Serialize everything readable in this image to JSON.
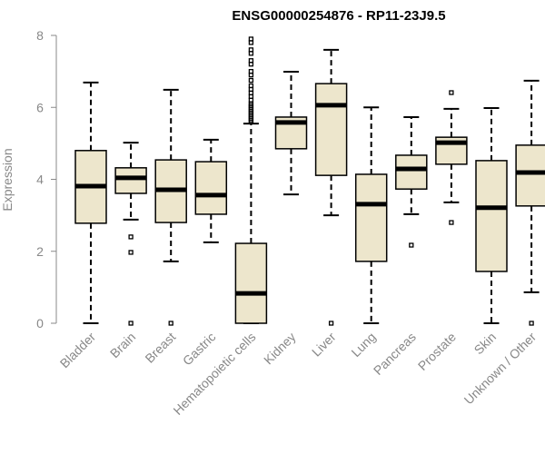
{
  "chart_data": {
    "type": "box",
    "title": "ENSG00000254876 - RP11-23J9.5",
    "xlabel": "",
    "ylabel": "Expression",
    "ylim": [
      0,
      8
    ],
    "yticks": [
      0,
      2,
      4,
      6,
      8
    ],
    "grid": false,
    "box_fill": "#ede6cc",
    "box_stroke": "#000000",
    "axis_color": "#888888",
    "categories": [
      "Bladder",
      "Brain",
      "Breast",
      "Gastric",
      "Hematopoietic cells",
      "Kidney",
      "Liver",
      "Lung",
      "Pancreas",
      "Prostate",
      "Skin",
      "Unknown / Other"
    ],
    "boxes": [
      {
        "name": "Bladder",
        "whisker_low": 0,
        "q1": 2.78,
        "median": 3.81,
        "q3": 4.8,
        "whisker_high": 6.69,
        "outliers": []
      },
      {
        "name": "Brain",
        "whisker_low": 2.88,
        "q1": 3.61,
        "median": 4.04,
        "q3": 4.32,
        "whisker_high": 5.02,
        "outliers": [
          2.4,
          1.97,
          0
        ]
      },
      {
        "name": "Breast",
        "whisker_low": 1.72,
        "q1": 2.8,
        "median": 3.71,
        "q3": 4.54,
        "whisker_high": 6.49,
        "outliers": [
          0
        ]
      },
      {
        "name": "Gastric",
        "whisker_low": 2.25,
        "q1": 3.03,
        "median": 3.56,
        "q3": 4.49,
        "whisker_high": 5.1,
        "outliers": []
      },
      {
        "name": "Hematopoietic cells",
        "whisker_low": 0,
        "q1": 0,
        "median": 0.83,
        "q3": 2.22,
        "whisker_high": 5.55,
        "outliers": [
          5.6,
          5.65,
          5.7,
          5.75,
          5.8,
          5.85,
          5.9,
          5.95,
          6.0,
          6.05,
          6.1,
          6.2,
          6.3,
          6.4,
          6.5,
          6.6,
          6.75,
          6.9,
          7.0,
          7.2,
          7.3,
          7.5,
          7.6,
          7.8,
          7.9
        ]
      },
      {
        "name": "Kidney",
        "whisker_low": 3.58,
        "q1": 4.85,
        "median": 5.58,
        "q3": 5.73,
        "whisker_high": 6.99,
        "outliers": []
      },
      {
        "name": "Liver",
        "whisker_low": 3.0,
        "q1": 4.11,
        "median": 6.06,
        "q3": 6.66,
        "whisker_high": 7.6,
        "outliers": [
          0
        ]
      },
      {
        "name": "Lung",
        "whisker_low": 0,
        "q1": 1.72,
        "median": 3.31,
        "q3": 4.14,
        "whisker_high": 6.0,
        "outliers": []
      },
      {
        "name": "Pancreas",
        "whisker_low": 3.03,
        "q1": 3.73,
        "median": 4.29,
        "q3": 4.67,
        "whisker_high": 5.73,
        "outliers": [
          2.17
        ]
      },
      {
        "name": "Prostate",
        "whisker_low": 3.36,
        "q1": 4.42,
        "median": 5.02,
        "q3": 5.17,
        "whisker_high": 5.96,
        "outliers": [
          6.41,
          2.8
        ]
      },
      {
        "name": "Skin",
        "whisker_low": 0,
        "q1": 1.44,
        "median": 3.21,
        "q3": 4.52,
        "whisker_high": 5.98,
        "outliers": []
      },
      {
        "name": "Unknown / Other",
        "whisker_low": 0.86,
        "q1": 3.26,
        "median": 4.19,
        "q3": 4.95,
        "whisker_high": 6.74,
        "outliers": [
          0
        ]
      }
    ]
  }
}
